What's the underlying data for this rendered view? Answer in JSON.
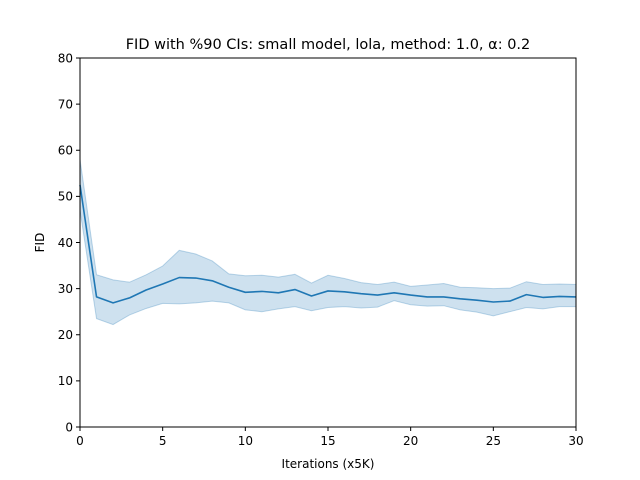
{
  "chart_data": {
    "type": "line",
    "title": "FID with %90 CIs: small model, lola, method: 1.0, α: 0.2",
    "xlabel": "Iterations (x5K)",
    "ylabel": "FID",
    "xlim": [
      0,
      30
    ],
    "ylim": [
      0,
      80
    ],
    "xticks": [
      0,
      5,
      10,
      15,
      20,
      25,
      30
    ],
    "yticks": [
      0,
      10,
      20,
      30,
      40,
      50,
      60,
      70,
      80
    ],
    "grid": false,
    "colors": {
      "line": "#1f77b4",
      "band": "#1f77b4"
    },
    "x": [
      0,
      1,
      2,
      3,
      4,
      5,
      6,
      7,
      8,
      9,
      10,
      11,
      12,
      13,
      14,
      15,
      16,
      17,
      18,
      19,
      20,
      21,
      22,
      23,
      24,
      25,
      26,
      27,
      28,
      29,
      30
    ],
    "series": [
      {
        "values": [
          52.5,
          28.2,
          26.9,
          28.0,
          29.7,
          31.0,
          32.4,
          32.3,
          31.7,
          30.3,
          29.2,
          29.4,
          29.1,
          29.8,
          28.4,
          29.5,
          29.3,
          28.9,
          28.6,
          29.1,
          28.6,
          28.2,
          28.2,
          27.8,
          27.5,
          27.1,
          27.3,
          28.7,
          28.1,
          28.3,
          28.2
        ],
        "ci_upper": [
          58.0,
          33.0,
          31.9,
          31.4,
          33.0,
          34.9,
          38.3,
          37.5,
          36.0,
          33.2,
          32.8,
          32.9,
          32.5,
          33.1,
          31.2,
          32.9,
          32.2,
          31.3,
          30.9,
          31.4,
          30.5,
          30.8,
          31.1,
          30.3,
          30.2,
          30.0,
          30.1,
          31.5,
          30.9,
          31.0,
          30.9
        ],
        "ci_lower": [
          47.0,
          23.5,
          22.2,
          24.3,
          25.7,
          26.8,
          26.7,
          26.9,
          27.3,
          26.9,
          25.4,
          25.0,
          25.6,
          26.1,
          25.2,
          25.9,
          26.1,
          25.8,
          26.0,
          27.4,
          26.5,
          26.2,
          26.3,
          25.4,
          24.9,
          24.1,
          25.0,
          25.9,
          25.6,
          26.1,
          26.1
        ]
      }
    ]
  }
}
